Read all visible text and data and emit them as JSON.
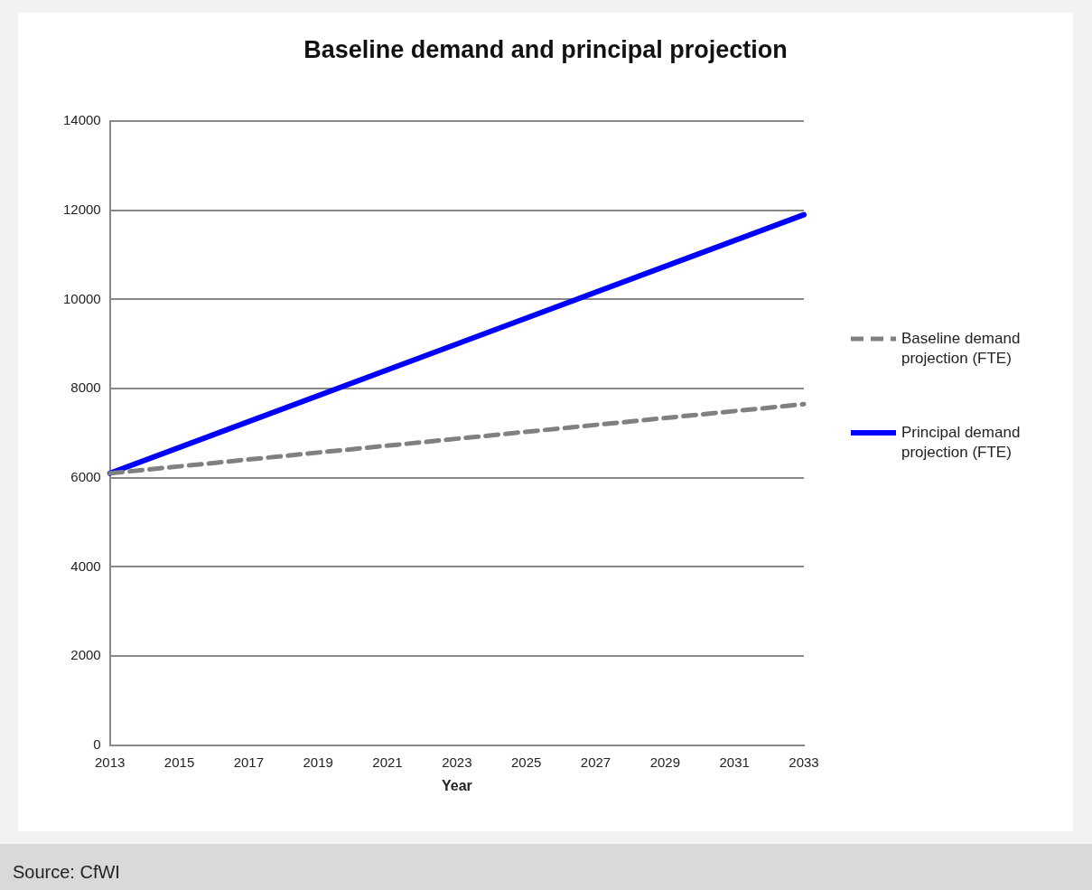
{
  "chart_data": {
    "type": "line",
    "title": "Baseline demand and principal projection",
    "xlabel": "Year",
    "x": [
      2013,
      2033
    ],
    "series": [
      {
        "name": "Baseline demand projection (FTE)",
        "color": "#808080",
        "line_style": "dashed",
        "values": [
          6100,
          7650
        ]
      },
      {
        "name": "Principal demand projection (FTE)",
        "color": "#0000ff",
        "line_style": "solid",
        "values": [
          6100,
          11900
        ]
      }
    ],
    "xlim": [
      2013,
      2033
    ],
    "xticks": [
      2013,
      2015,
      2017,
      2019,
      2021,
      2023,
      2025,
      2027,
      2029,
      2031,
      2033
    ],
    "ylim": [
      0,
      14000
    ],
    "yticks": [
      0,
      2000,
      4000,
      6000,
      8000,
      10000,
      12000,
      14000
    ],
    "grid": "y",
    "legend": "right",
    "marker": "none",
    "annotations": [
      "Source: CfWI"
    ]
  }
}
